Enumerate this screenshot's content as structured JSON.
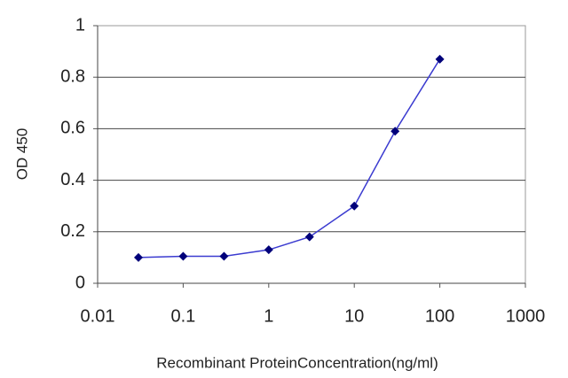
{
  "chart_data": {
    "type": "line",
    "x_label": "Recombinant ProteinConcentration(ng/ml)",
    "y_label": "OD 450",
    "x": [
      0.03,
      0.1,
      0.3,
      1,
      3,
      10,
      30,
      100
    ],
    "series": [
      {
        "name": "OD 450",
        "color": "#3b3bd0",
        "marker_color": "#00007a",
        "values": [
          0.1,
          0.105,
          0.105,
          0.13,
          0.18,
          0.3,
          0.59,
          0.87
        ]
      }
    ],
    "xscale": "log",
    "xlim": [
      0.01,
      1000
    ],
    "xticks": [
      0.01,
      0.1,
      1,
      10,
      100,
      1000
    ],
    "ylim": [
      0,
      1
    ],
    "yticks": [
      0,
      0.2,
      0.4,
      0.6,
      0.8,
      1
    ],
    "grid": true
  }
}
